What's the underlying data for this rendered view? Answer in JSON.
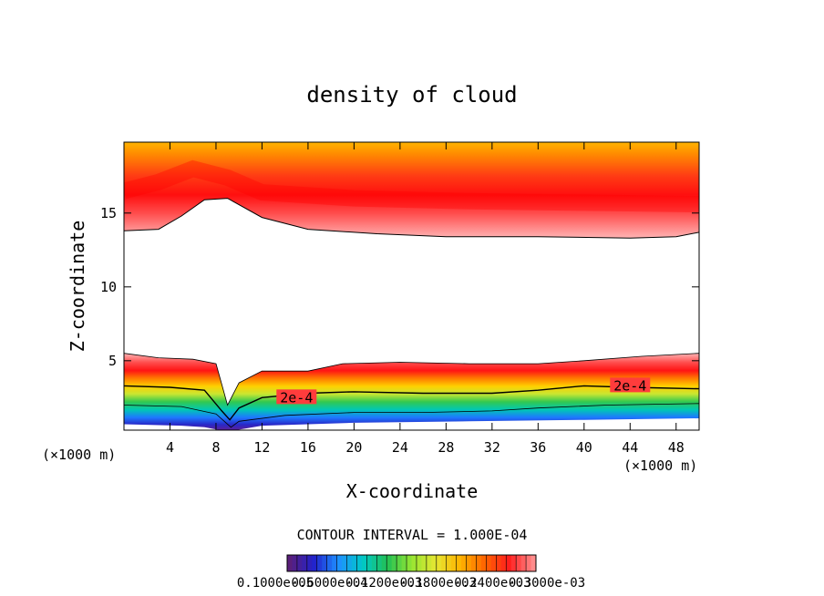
{
  "chart_data": {
    "type": "heatmap",
    "title": "density of cloud",
    "xlabel": "X-coordinate",
    "ylabel": "Z-coordinate",
    "x_unit_left": "(×1000 m)",
    "x_unit_right": "(×1000 m)",
    "xlim": [
      0,
      50
    ],
    "ylim": [
      0.3,
      19.8
    ],
    "x_ticks": [
      4,
      8,
      12,
      16,
      20,
      24,
      28,
      32,
      36,
      40,
      44,
      48
    ],
    "x_tick_labels": [
      "4",
      "8",
      "12",
      "16",
      "20",
      "24",
      "28",
      "32",
      "36",
      "40",
      "44",
      "48"
    ],
    "y_ticks": [
      5,
      10,
      15
    ],
    "y_tick_labels": [
      "5",
      "10",
      "15"
    ],
    "contour_interval_text": "CONTOUR INTERVAL = 1.000E-04",
    "contour_label": "2e-4",
    "contour_label_positions": [
      [
        15.0,
        2.5
      ],
      [
        44.0,
        3.3
      ]
    ],
    "colorbar": {
      "labels": [
        "0.1000e-05",
        "0.6000e-04",
        "0.1200e-03",
        "0.1800e-03",
        "0.2400e-03",
        "0.3000e-03"
      ],
      "colors": [
        "#5a1f7a",
        "#2222cc",
        "#1e90ff",
        "#00c8c8",
        "#22c055",
        "#96e632",
        "#e6e632",
        "#ffb400",
        "#ff6400",
        "#ff1e1e",
        "#ff8c8c"
      ]
    },
    "upper_layer": {
      "base_z": [
        [
          0,
          13.8
        ],
        [
          3,
          13.9
        ],
        [
          5,
          14.8
        ],
        [
          7,
          15.9
        ],
        [
          9,
          16.0
        ],
        [
          12,
          14.7
        ],
        [
          16,
          13.9
        ],
        [
          22,
          13.6
        ],
        [
          28,
          13.4
        ],
        [
          36,
          13.4
        ],
        [
          44,
          13.3
        ],
        [
          48,
          13.4
        ],
        [
          50,
          13.7
        ]
      ],
      "peak_z": [
        [
          0,
          16.5
        ],
        [
          3,
          17.1
        ],
        [
          6,
          18.0
        ],
        [
          9,
          17.4
        ],
        [
          12,
          16.4
        ],
        [
          20,
          16.0
        ],
        [
          30,
          15.8
        ],
        [
          40,
          15.7
        ],
        [
          50,
          15.6
        ]
      ],
      "top_z": 19.8
    },
    "lower_layer": {
      "top_z": [
        [
          0,
          5.5
        ],
        [
          3,
          5.2
        ],
        [
          6,
          5.1
        ],
        [
          8,
          4.8
        ],
        [
          9,
          2.0
        ],
        [
          10,
          3.5
        ],
        [
          12,
          4.3
        ],
        [
          16,
          4.3
        ],
        [
          19,
          4.8
        ],
        [
          24,
          4.9
        ],
        [
          30,
          4.8
        ],
        [
          36,
          4.8
        ],
        [
          40,
          5.0
        ],
        [
          45,
          5.3
        ],
        [
          50,
          5.5
        ]
      ],
      "contour_2e4_z": [
        [
          0,
          3.3
        ],
        [
          4,
          3.2
        ],
        [
          7,
          3.0
        ],
        [
          8.5,
          1.6
        ],
        [
          9.2,
          1.0
        ],
        [
          10,
          1.8
        ],
        [
          12,
          2.5
        ],
        [
          16,
          2.8
        ],
        [
          20,
          2.9
        ],
        [
          26,
          2.8
        ],
        [
          32,
          2.8
        ],
        [
          36,
          3.0
        ],
        [
          40,
          3.3
        ],
        [
          44,
          3.2
        ],
        [
          50,
          3.1
        ]
      ],
      "contour_1e4_z": [
        [
          0,
          2.0
        ],
        [
          5,
          1.9
        ],
        [
          8,
          1.4
        ],
        [
          9.3,
          0.5
        ],
        [
          10,
          0.9
        ],
        [
          14,
          1.3
        ],
        [
          20,
          1.5
        ],
        [
          26,
          1.5
        ],
        [
          32,
          1.6
        ],
        [
          36,
          1.8
        ],
        [
          42,
          2.0
        ],
        [
          50,
          2.1
        ]
      ],
      "bottom_z": [
        [
          0,
          0.7
        ],
        [
          5,
          0.6
        ],
        [
          7,
          0.5
        ],
        [
          9,
          0.2
        ],
        [
          12,
          0.6
        ],
        [
          20,
          0.8
        ],
        [
          30,
          0.9
        ],
        [
          40,
          1.0
        ],
        [
          50,
          1.1
        ]
      ]
    }
  }
}
